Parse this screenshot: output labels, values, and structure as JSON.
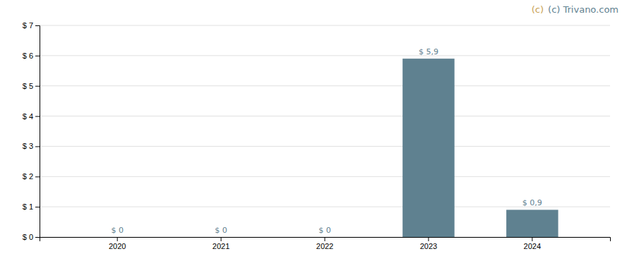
{
  "chart_data": {
    "type": "bar",
    "categories": [
      "2020",
      "2021",
      "2022",
      "2023",
      "2024"
    ],
    "values": [
      0,
      0,
      0,
      5.9,
      0.9
    ],
    "value_labels": [
      "$ 0",
      "$ 0",
      "$ 0",
      "$ 5,9",
      "$ 0,9"
    ],
    "data_labels": true,
    "color": "#5f8190",
    "ylim": [
      0,
      7
    ],
    "yticks": [
      {
        "value": 0,
        "label": "$ 0"
      },
      {
        "value": 1,
        "label": "$ 1"
      },
      {
        "value": 2,
        "label": "$ 2"
      },
      {
        "value": 3,
        "label": "$ 3"
      },
      {
        "value": 4,
        "label": "$ 4"
      },
      {
        "value": 5,
        "label": "$ 5"
      },
      {
        "value": 6,
        "label": "$ 6"
      },
      {
        "value": 7,
        "label": "$ 7"
      }
    ],
    "grid": true,
    "annotations": [
      {
        "text": "(c) Trivano.com",
        "color": "#5f8190"
      },
      {
        "text": "(c)",
        "color": "#c8a052"
      }
    ]
  }
}
